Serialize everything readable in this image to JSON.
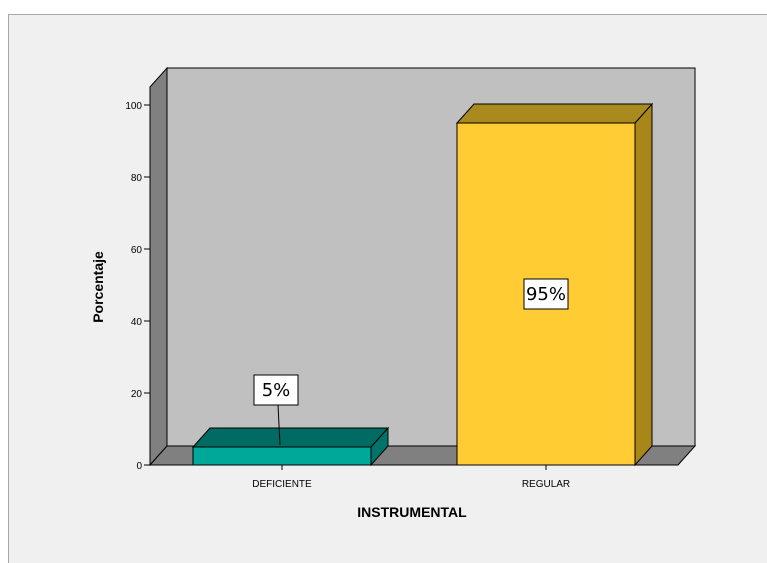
{
  "chart_data": {
    "type": "bar",
    "categories": [
      "DEFICIENTE",
      "REGULAR"
    ],
    "values": [
      5,
      95
    ],
    "data_labels": [
      "5%",
      "95%"
    ],
    "colors": [
      "#00a89a",
      "#ffcc33"
    ],
    "colors_top": [
      "#006b63",
      "#a88a1e"
    ],
    "colors_side": [
      "#00736a",
      "#a8861a"
    ],
    "xlabel": "INSTRUMENTAL",
    "ylabel": "Porcentaje",
    "ylim": [
      0,
      100
    ],
    "yticks": [
      0,
      20,
      40,
      60,
      80,
      100
    ],
    "grid": false,
    "style": "3d",
    "wall_color": "#c0c0c0",
    "floor_color": "#808080",
    "side_wall_color": "#808080",
    "background": "#f0f0f0"
  }
}
